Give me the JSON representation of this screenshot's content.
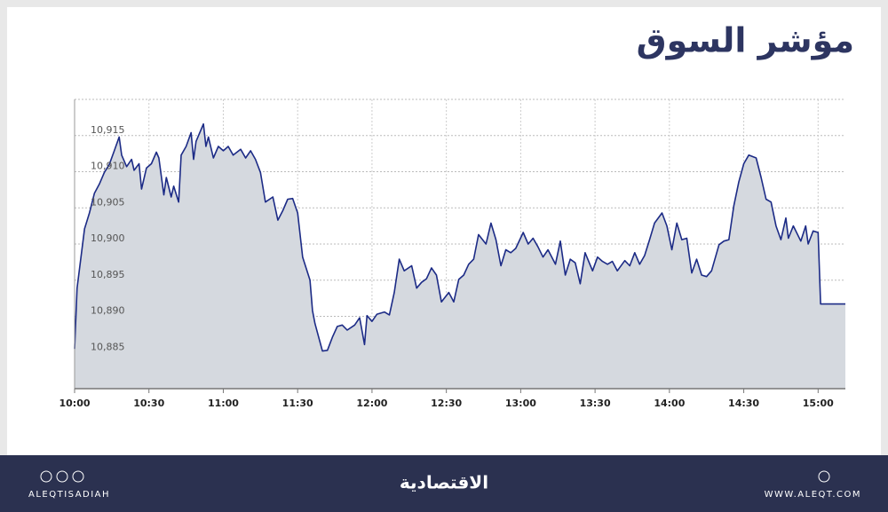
{
  "chart_data": {
    "type": "area",
    "title": "مؤشر السوق",
    "x": [
      "10:00",
      "10:01",
      "10:04",
      "10:06",
      "10:08",
      "10:10",
      "10:12",
      "10:14",
      "10:16",
      "10:18",
      "10:19",
      "10:21",
      "10:23",
      "10:24",
      "10:26",
      "10:27",
      "10:29",
      "10:31",
      "10:33",
      "10:34",
      "10:36",
      "10:37",
      "10:39",
      "10:40",
      "10:42",
      "10:43",
      "10:45",
      "10:47",
      "10:48",
      "10:49",
      "10:52",
      "10:53",
      "10:54",
      "10:56",
      "10:58",
      "11:00",
      "11:02",
      "11:04",
      "11:07",
      "11:09",
      "11:11",
      "11:13",
      "11:15",
      "11:17",
      "11:20",
      "11:22",
      "11:24",
      "11:26",
      "11:28",
      "11:30",
      "11:32",
      "11:35",
      "11:36",
      "11:37",
      "11:40",
      "11:42",
      "11:44",
      "11:46",
      "11:48",
      "11:50",
      "11:53",
      "11:55",
      "11:57",
      "11:58",
      "12:00",
      "12:02",
      "12:05",
      "12:07",
      "12:09",
      "12:11",
      "12:13",
      "12:16",
      "12:18",
      "12:20",
      "12:22",
      "12:24",
      "12:26",
      "12:28",
      "12:31",
      "12:33",
      "12:35",
      "12:37",
      "12:39",
      "12:41",
      "12:43",
      "12:46",
      "12:48",
      "12:50",
      "12:52",
      "12:54",
      "12:56",
      "12:58",
      "13:01",
      "13:03",
      "13:05",
      "13:07",
      "13:09",
      "13:11",
      "13:14",
      "13:16",
      "13:18",
      "13:20",
      "13:22",
      "13:24",
      "13:26",
      "13:29",
      "13:31",
      "13:33",
      "13:35",
      "13:37",
      "13:39",
      "13:42",
      "13:44",
      "13:46",
      "13:48",
      "13:50",
      "13:52",
      "13:54",
      "13:57",
      "13:59",
      "14:01",
      "14:03",
      "14:05",
      "14:07",
      "14:09",
      "14:11",
      "14:13",
      "14:15",
      "14:17",
      "14:20",
      "14:22",
      "14:24",
      "14:26",
      "14:28",
      "14:30",
      "14:32",
      "14:35",
      "14:37",
      "14:39",
      "14:41",
      "14:43",
      "14:45",
      "14:47",
      "14:48",
      "14:50",
      "14:53",
      "14:55",
      "14:56",
      "14:58",
      "15:00",
      "15:01",
      "15:11"
    ],
    "values": [
      10885.5,
      10893.9,
      10902.1,
      10904.3,
      10907,
      10908.3,
      10909.9,
      10911,
      10912.9,
      10914.8,
      10912.3,
      10910.7,
      10911.7,
      10910.2,
      10911.1,
      10907.6,
      10910.5,
      10911.1,
      10912.7,
      10911.9,
      10906.8,
      10909.2,
      10906.5,
      10908,
      10905.8,
      10912.3,
      10913.5,
      10915.4,
      10911.7,
      10914.2,
      10916.6,
      10913.5,
      10914.8,
      10911.9,
      10913.5,
      10912.9,
      10913.5,
      10912.3,
      10913.1,
      10911.9,
      10912.9,
      10911.7,
      10909.9,
      10905.8,
      10906.5,
      10903.3,
      10904.6,
      10906.2,
      10906.3,
      10904.3,
      10898.2,
      10895,
      10890.8,
      10889,
      10885.2,
      10885.3,
      10887.1,
      10888.6,
      10888.8,
      10888.1,
      10888.8,
      10889.8,
      10886.1,
      10890.1,
      10889.3,
      10890.3,
      10890.6,
      10890.2,
      10893.3,
      10897.9,
      10896.3,
      10897,
      10893.9,
      10894.7,
      10895.2,
      10896.7,
      10895.7,
      10892,
      10893.3,
      10892,
      10895.1,
      10895.7,
      10897.2,
      10897.9,
      10901.3,
      10900,
      10902.9,
      10900.6,
      10897,
      10899.2,
      10898.8,
      10899.4,
      10901.6,
      10900,
      10900.8,
      10899.6,
      10898.2,
      10899.2,
      10897.2,
      10900.4,
      10895.7,
      10897.9,
      10897.4,
      10894.5,
      10898.8,
      10896.3,
      10898.2,
      10897.6,
      10897.2,
      10897.6,
      10896.3,
      10897.7,
      10897,
      10898.8,
      10897.2,
      10898.4,
      10900.6,
      10902.9,
      10904.3,
      10902.5,
      10899.2,
      10902.9,
      10900.6,
      10900.8,
      10896,
      10897.9,
      10895.7,
      10895.5,
      10896.3,
      10899.9,
      10900.4,
      10900.6,
      10905.3,
      10908.6,
      10911.1,
      10912.3,
      10911.9,
      10909.2,
      10906.2,
      10905.8,
      10902.5,
      10900.6,
      10903.6,
      10900.8,
      10902.5,
      10900.4,
      10902.5,
      10900,
      10901.8,
      10901.6,
      10891.7,
      10891.7
    ],
    "color": "#1c2b86",
    "fill": "#d5d9df",
    "xlim": [
      "10:00",
      "15:11"
    ],
    "xticks": [
      "10:00",
      "10:30",
      "11:00",
      "11:30",
      "12:00",
      "12:30",
      "13:00",
      "13:30",
      "14:00",
      "14:30",
      "15:00"
    ],
    "ylim": [
      10880,
      10920
    ],
    "yticks": [
      {
        "value": 10885,
        "label": "10,885"
      },
      {
        "value": 10890,
        "label": "10,890"
      },
      {
        "value": 10895,
        "label": "10,895"
      },
      {
        "value": 10900,
        "label": "10,900"
      },
      {
        "value": 10905,
        "label": "10,905"
      },
      {
        "value": 10910,
        "label": "10,910"
      },
      {
        "value": 10915,
        "label": "10,915"
      }
    ],
    "grid": true
  },
  "footer": {
    "left": "ALEQTISADIAH",
    "center": "الاقتصادية",
    "right": "WWW.ALEQT.COM"
  }
}
